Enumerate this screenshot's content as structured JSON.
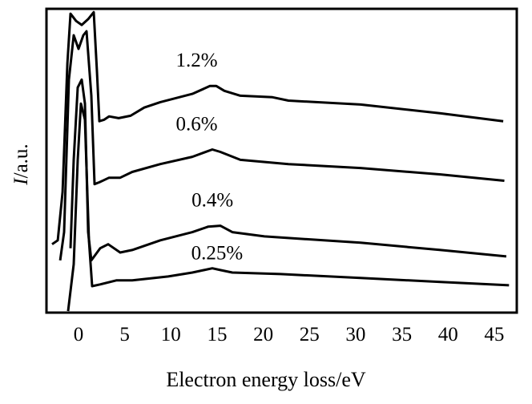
{
  "chart_data": {
    "type": "line",
    "title": "",
    "xlabel": "Electron energy loss/eV",
    "ylabel_italic": "I",
    "ylabel_rest": "/a.u.",
    "xlim": [
      -3.47,
      47.44
    ],
    "ylim": [
      0,
      100
    ],
    "xticks": [
      0,
      5,
      10,
      15,
      20,
      25,
      30,
      35,
      40,
      45
    ],
    "xtick_labels": [
      "0",
      "5",
      "10",
      "15",
      "20",
      "25",
      "30",
      "35",
      "40",
      "45"
    ],
    "grid": false,
    "series": [
      {
        "name": "1.2%",
        "label_at": [
          12.8,
          81
        ],
        "points": [
          [
            -2.86,
            22.5
          ],
          [
            -2.25,
            23.8
          ],
          [
            -1.73,
            39.7
          ],
          [
            -1.21,
            82
          ],
          [
            -0.87,
            98.4
          ],
          [
            -0.26,
            96
          ],
          [
            0.35,
            94.7
          ],
          [
            1.04,
            96.6
          ],
          [
            1.65,
            98.9
          ],
          [
            1.99,
            79.4
          ],
          [
            2.25,
            63
          ],
          [
            2.78,
            63.5
          ],
          [
            3.3,
            64.6
          ],
          [
            4.34,
            64
          ],
          [
            5.64,
            64.8
          ],
          [
            7.11,
            67.5
          ],
          [
            8.85,
            69.3
          ],
          [
            12.32,
            72
          ],
          [
            14.22,
            74.6
          ],
          [
            14.92,
            74.6
          ],
          [
            15.78,
            73
          ],
          [
            17.52,
            71.4
          ],
          [
            21,
            70.9
          ],
          [
            22.72,
            69.8
          ],
          [
            30.53,
            68.5
          ],
          [
            39.2,
            65.6
          ],
          [
            45.97,
            63
          ]
        ]
      },
      {
        "name": "0.6%",
        "label_at": [
          12.8,
          60
        ],
        "points": [
          [
            -1.99,
            17.2
          ],
          [
            -1.56,
            26.5
          ],
          [
            -1.04,
            76.7
          ],
          [
            -0.52,
            91.3
          ],
          [
            0,
            86.8
          ],
          [
            0.52,
            91.3
          ],
          [
            0.87,
            92.6
          ],
          [
            1.39,
            71.4
          ],
          [
            1.73,
            42.3
          ],
          [
            2.25,
            42.9
          ],
          [
            3.3,
            44.4
          ],
          [
            4.51,
            44.4
          ],
          [
            5.81,
            46.3
          ],
          [
            8.85,
            48.9
          ],
          [
            12.32,
            51.3
          ],
          [
            14.48,
            53.7
          ],
          [
            15.35,
            52.9
          ],
          [
            17.52,
            50.3
          ],
          [
            22.72,
            48.9
          ],
          [
            30.53,
            47.6
          ],
          [
            39.2,
            45.5
          ],
          [
            46.1,
            43.4
          ]
        ]
      },
      {
        "name": "0.4%",
        "label_at": [
          14.5,
          35
        ],
        "points": [
          [
            -0.87,
            21.2
          ],
          [
            -0.52,
            50.3
          ],
          [
            -0.09,
            74.1
          ],
          [
            0.35,
            76.7
          ],
          [
            0.69,
            68.8
          ],
          [
            1.04,
            26.5
          ],
          [
            1.39,
            17.2
          ],
          [
            2.34,
            21.2
          ],
          [
            3.21,
            22.5
          ],
          [
            4.51,
            19.8
          ],
          [
            5.81,
            20.6
          ],
          [
            8.85,
            23.8
          ],
          [
            12.32,
            26.5
          ],
          [
            14.05,
            28.3
          ],
          [
            15.35,
            28.6
          ],
          [
            16.65,
            26.5
          ],
          [
            20.12,
            25.1
          ],
          [
            30.53,
            23
          ],
          [
            39.2,
            20.6
          ],
          [
            46.3,
            18.5
          ]
        ]
      },
      {
        "name": "0.25%",
        "label_at": [
          15,
          17.5
        ],
        "points": [
          [
            -1.13,
            0.5
          ],
          [
            -0.52,
            15.9
          ],
          [
            -0.09,
            50.3
          ],
          [
            0.26,
            68.8
          ],
          [
            0.69,
            63.5
          ],
          [
            1.13,
            23.8
          ],
          [
            1.47,
            8.7
          ],
          [
            2.34,
            9.3
          ],
          [
            4.08,
            10.6
          ],
          [
            5.81,
            10.6
          ],
          [
            9.71,
            11.9
          ],
          [
            12.32,
            13.2
          ],
          [
            14.48,
            14.6
          ],
          [
            15.35,
            14
          ],
          [
            16.65,
            13.2
          ],
          [
            21.86,
            12.7
          ],
          [
            30.53,
            11.4
          ],
          [
            39.2,
            10.1
          ],
          [
            46.6,
            9
          ]
        ]
      }
    ]
  }
}
